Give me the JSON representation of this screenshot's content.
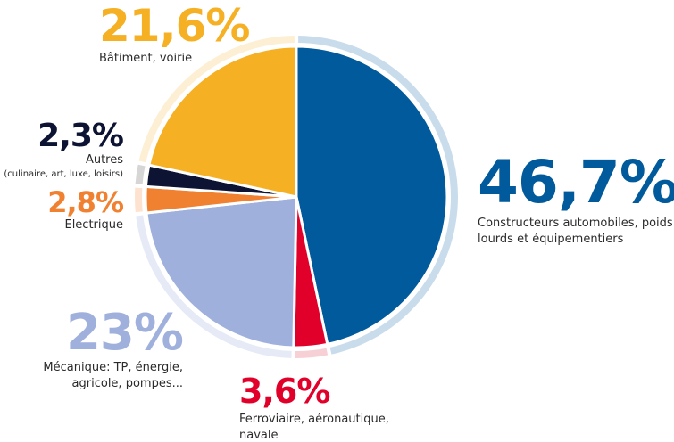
{
  "chart_data": {
    "type": "pie",
    "title": "",
    "slices": [
      {
        "key": "auto",
        "value": 46.7,
        "value_label": "46,7%",
        "lines": [
          "Constructeurs automobiles, poids",
          "lourds et équipementiers"
        ],
        "color": "#005a9c",
        "ring_color": "#c9dcec"
      },
      {
        "key": "ferro",
        "value": 3.6,
        "value_label": "3,6%",
        "lines": [
          "Ferroviaire, aéronautique,",
          "navale"
        ],
        "color": "#e1002a",
        "ring_color": "#f7d0d6"
      },
      {
        "key": "meca",
        "value": 23,
        "value_label": "23%",
        "lines": [
          "Mécanique: TP, énergie,",
          "agricole, pompes..."
        ],
        "color": "#9fb0dc",
        "ring_color": "#e6eaf6"
      },
      {
        "key": "elec",
        "value": 2.8,
        "value_label": "2,8%",
        "lines": [
          "Electrique"
        ],
        "color": "#f08131",
        "ring_color": "#fde3cf"
      },
      {
        "key": "autres",
        "value": 2.3,
        "value_label": "2,3%",
        "lines": [
          "Autres",
          "(culinaire, art,  luxe, loisirs)"
        ],
        "color": "#0d1433",
        "ring_color": "#d6d6d6"
      },
      {
        "key": "bat",
        "value": 21.6,
        "value_label": "21,6%",
        "lines": [
          "Bâtiment, voirie"
        ],
        "color": "#f5b023",
        "ring_color": "#fdefd3"
      }
    ]
  }
}
